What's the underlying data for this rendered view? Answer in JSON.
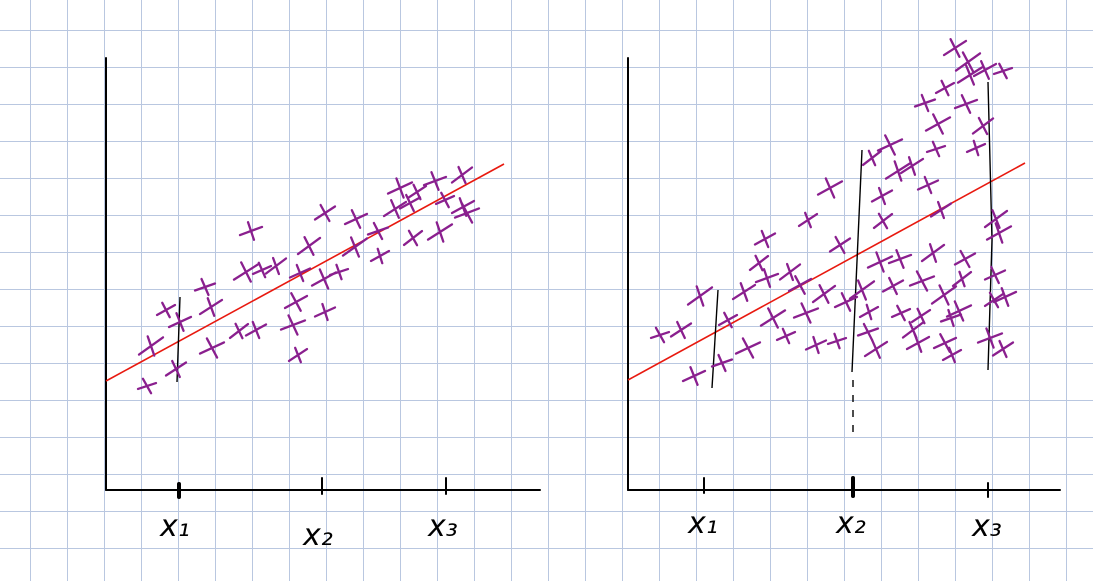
{
  "chart_data": [
    {
      "type": "scatter",
      "panel": "left",
      "x_ticks": [
        "x₁",
        "x₂",
        "x₃"
      ],
      "fit_line_color": "#e8190f",
      "point_color": "#8a1f8e",
      "grid": true,
      "spread": "constant"
    },
    {
      "type": "scatter",
      "panel": "right",
      "x_ticks": [
        "x₁",
        "x₂",
        "x₃"
      ],
      "fit_line_color": "#e8190f",
      "point_color": "#8a1f8e",
      "grid": true,
      "spread": "increasing"
    }
  ]
}
